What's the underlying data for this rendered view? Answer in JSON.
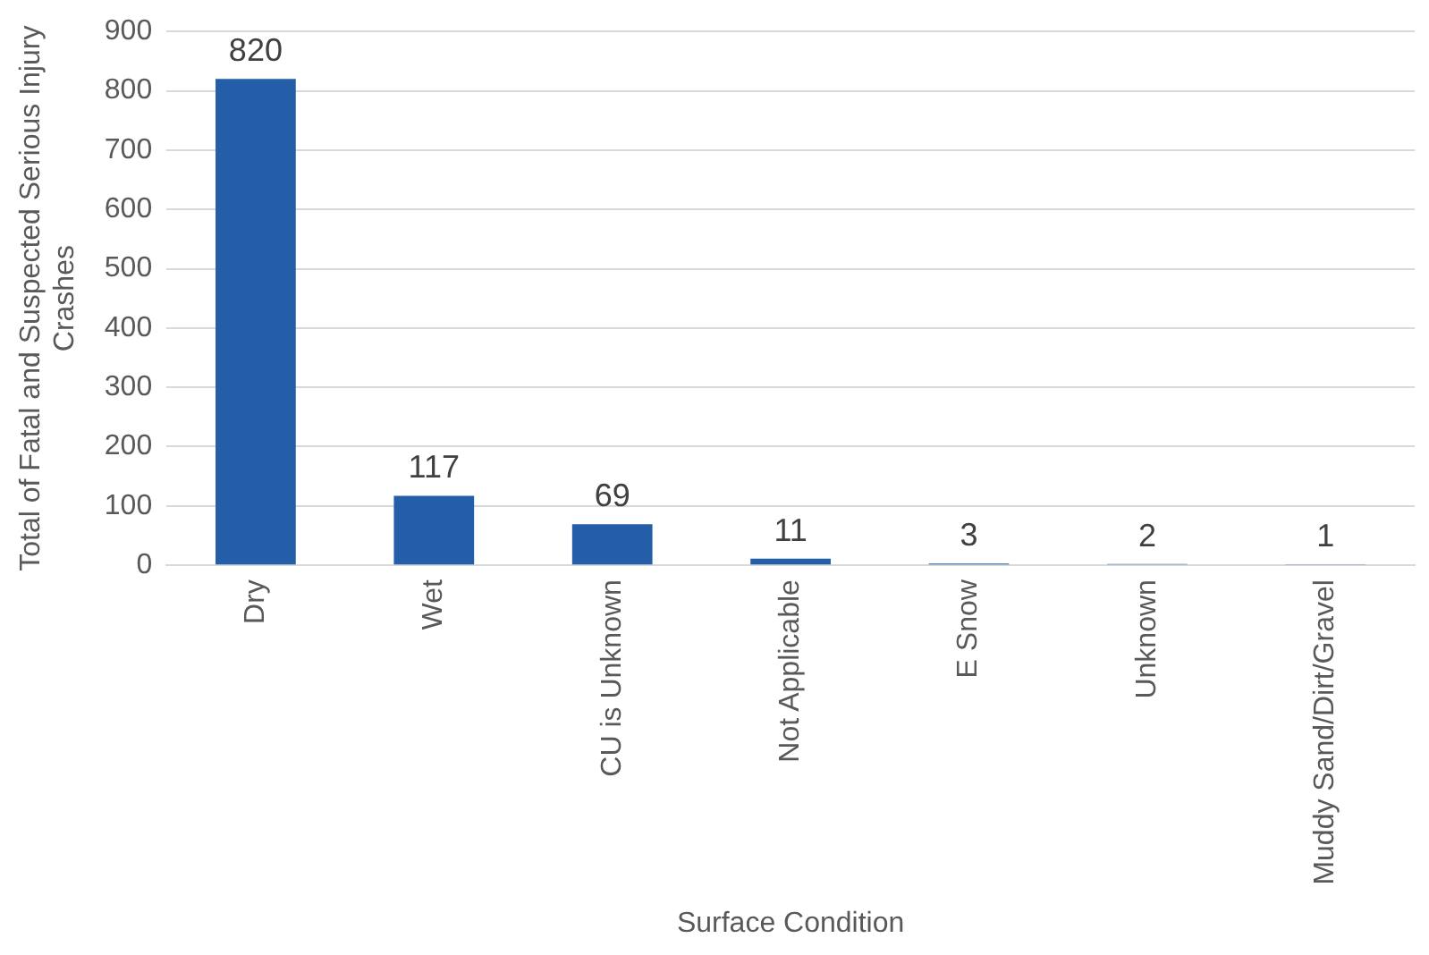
{
  "chart_data": {
    "type": "bar",
    "xlabel": "Surface Condition",
    "ylabel": "Total of Fatal and Suspected Serious Injury Crashes",
    "categories": [
      "Dry",
      "Wet",
      "CU is Unknown",
      "Not Applicable",
      "E Snow",
      "Unknown",
      "Muddy Sand/Dirt/Gravel"
    ],
    "values": [
      820,
      117,
      69,
      11,
      3,
      2,
      1
    ],
    "color": "#255ea8",
    "ylim": [
      0,
      900
    ],
    "yticks": [
      0,
      100,
      200,
      300,
      400,
      500,
      600,
      700,
      800,
      900
    ],
    "grid": "y",
    "data_labels": true
  }
}
